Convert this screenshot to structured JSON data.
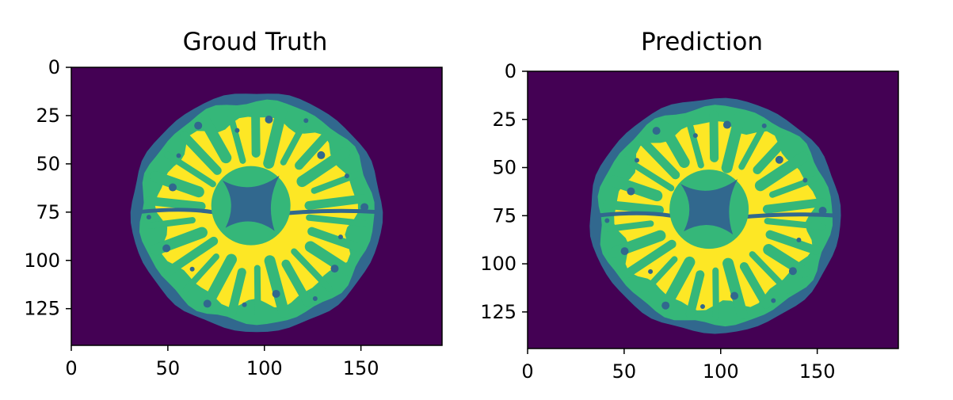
{
  "colors": {
    "background": "#440154",
    "csf": "#31688e",
    "gray_matter": "#35b779",
    "white_matter": "#fde725",
    "axis": "#000000",
    "page": "#ffffff"
  },
  "chart_data": [
    {
      "type": "heatmap",
      "title": "Groud Truth",
      "xlim": [
        0,
        192
      ],
      "ylim": [
        144,
        0
      ],
      "x_ticks": [
        "0",
        "50",
        "100",
        "150"
      ],
      "y_ticks": [
        "0",
        "25",
        "50",
        "75",
        "100",
        "125"
      ],
      "x_tick_values": [
        0,
        50,
        100,
        150
      ],
      "y_tick_values": [
        0,
        25,
        50,
        75,
        100,
        125
      ],
      "classes": [
        "background",
        "CSF",
        "gray matter",
        "white matter"
      ],
      "brain": {
        "center": [
          96,
          75
        ],
        "radius_x": 65,
        "radius_y": 62
      },
      "ventricle": {
        "center": [
          93,
          70
        ]
      },
      "grid": false
    },
    {
      "type": "heatmap",
      "title": "Prediction",
      "xlim": [
        0,
        192
      ],
      "ylim": [
        144,
        0
      ],
      "x_ticks": [
        "0",
        "50",
        "100",
        "150"
      ],
      "y_ticks": [
        "0",
        "25",
        "50",
        "75",
        "100",
        "125"
      ],
      "x_tick_values": [
        0,
        50,
        100,
        150
      ],
      "y_tick_values": [
        0,
        25,
        50,
        75,
        100,
        125
      ],
      "classes": [
        "background",
        "CSF",
        "gray matter",
        "white matter"
      ],
      "brain": {
        "center": [
          97,
          75
        ],
        "radius_x": 65,
        "radius_y": 61
      },
      "ventricle": {
        "center": [
          94,
          70
        ]
      },
      "grid": false
    }
  ]
}
